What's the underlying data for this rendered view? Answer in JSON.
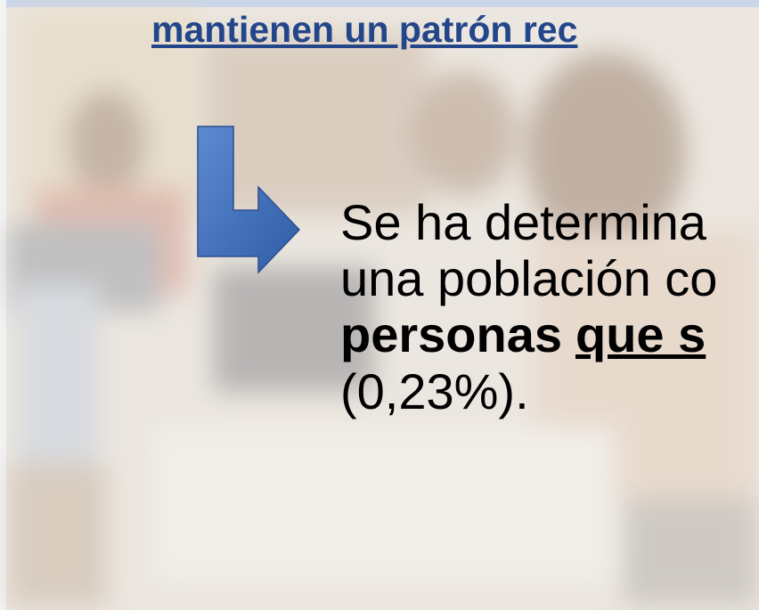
{
  "header": {
    "title": "mantienen un patrón rec"
  },
  "body": {
    "line1": "Se ha determina",
    "line2": "una población co",
    "line3_bold": "personas",
    "line3_underlined": "que s",
    "line4": "(0,23%)."
  }
}
